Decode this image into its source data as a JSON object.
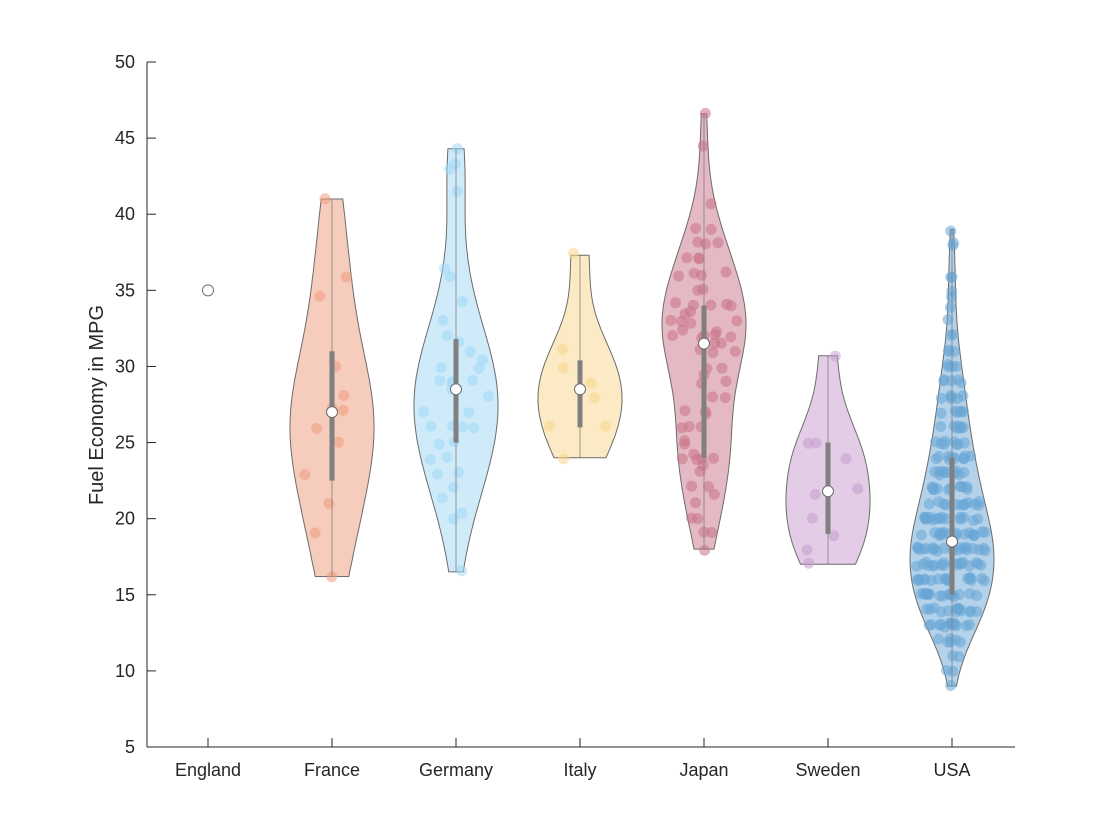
{
  "chart_data": {
    "type": "violin",
    "ylabel": "Fuel Economy in MPG",
    "ylim": [
      5,
      50
    ],
    "yticks": [
      5,
      10,
      15,
      20,
      25,
      30,
      35,
      40,
      45,
      50
    ],
    "grid": false,
    "categories": [
      "England",
      "France",
      "Germany",
      "Italy",
      "Japan",
      "Sweden",
      "USA"
    ],
    "series": [
      {
        "category": "England",
        "color": "#7f7f7f",
        "median": 35,
        "q1": 35,
        "q3": 35,
        "min": 35,
        "max": 35,
        "points": [
          35
        ]
      },
      {
        "category": "France",
        "color": "#ee9b7c",
        "median": 27,
        "q1": 22.5,
        "q3": 31,
        "min": 16.2,
        "max": 41,
        "points": [
          16.2,
          19,
          21,
          23,
          25,
          26,
          27,
          27.2,
          28,
          30,
          34.5,
          36,
          41
        ]
      },
      {
        "category": "Germany",
        "color": "#a0d8f6",
        "median": 28.5,
        "q1": 25,
        "q3": 31.8,
        "min": 16.5,
        "max": 44.3,
        "points": [
          16.5,
          20,
          20.3,
          21.5,
          22,
          23,
          23,
          24,
          24,
          25,
          25,
          26,
          26,
          26,
          26,
          27,
          27,
          28,
          28.5,
          29,
          29,
          29,
          29,
          30,
          30,
          30.5,
          31,
          31.5,
          32,
          33,
          34.3,
          36,
          36.4,
          41.5,
          43.1,
          43.4,
          44.3
        ]
      },
      {
        "category": "Italy",
        "color": "#f8d68a",
        "median": 28.5,
        "q1": 26,
        "q3": 30.4,
        "min": 24,
        "max": 37.3,
        "points": [
          24,
          26,
          26,
          28,
          29,
          30,
          31,
          37.3
        ]
      },
      {
        "category": "Japan",
        "color": "#c97387",
        "median": 31.5,
        "q1": 24,
        "q3": 34,
        "min": 18,
        "max": 46.6,
        "points": [
          18,
          19,
          19,
          20,
          20,
          21,
          21.5,
          22,
          22,
          23,
          23.5,
          24,
          24,
          24,
          24,
          24.2,
          25,
          25,
          26,
          26,
          26,
          27,
          27,
          27.2,
          28,
          28,
          29,
          29,
          29.5,
          30,
          30,
          31,
          31,
          31,
          31.5,
          31.6,
          32,
          32,
          32,
          32,
          32,
          32.2,
          32.4,
          32.7,
          33,
          33,
          33,
          33.5,
          33.7,
          34,
          34,
          34,
          34,
          34.1,
          35,
          35,
          36,
          36,
          36,
          36.1,
          37,
          37,
          37.2,
          38,
          38,
          38.1,
          39,
          39.1,
          40.8,
          44.6,
          46.6
        ]
      },
      {
        "category": "Sweden",
        "color": "#c79ccd",
        "median": 21.8,
        "q1": 19,
        "q3": 25,
        "min": 17,
        "max": 30.7,
        "points": [
          17,
          18,
          19,
          20,
          21.5,
          22,
          24,
          25,
          25,
          30.7
        ]
      },
      {
        "category": "USA",
        "color": "#6aa6d6",
        "median": 18.5,
        "q1": 15,
        "q3": 24,
        "min": 9,
        "max": 39,
        "points": [
          9,
          10,
          10,
          11,
          11,
          12,
          12,
          12,
          12,
          12,
          12,
          13,
          13,
          13,
          13,
          13,
          13,
          13,
          13,
          13,
          13,
          13,
          13,
          13,
          13,
          14,
          14,
          14,
          14,
          14,
          14,
          14,
          14,
          14,
          14,
          14,
          14,
          14,
          14,
          15,
          15,
          15,
          15,
          15,
          15,
          15,
          15,
          15,
          15,
          15,
          15,
          15,
          15,
          15,
          15,
          15,
          16,
          16,
          16,
          16,
          16,
          16,
          16,
          16,
          16,
          16,
          16,
          16,
          16,
          16,
          16,
          16,
          16,
          16,
          17,
          17,
          17,
          17,
          17,
          17,
          17,
          17,
          17,
          17,
          17,
          17,
          17,
          17,
          17,
          17,
          17,
          17,
          18,
          18,
          18,
          18,
          18,
          18,
          18,
          18,
          18,
          18,
          18,
          18,
          18,
          18,
          18,
          18,
          18,
          18,
          18,
          18,
          19,
          19,
          19,
          19,
          19,
          19,
          19,
          19,
          19,
          19,
          19,
          19,
          19,
          19,
          19,
          19,
          19,
          20,
          20,
          20,
          20,
          20,
          20,
          20,
          20,
          20,
          20,
          20,
          20,
          20,
          20,
          20,
          20,
          21,
          21,
          21,
          21,
          21,
          21,
          21,
          21,
          21,
          21,
          21,
          21,
          22,
          22,
          22,
          22,
          22,
          22,
          22,
          22,
          22,
          22,
          22,
          22,
          23,
          23,
          23,
          23,
          23,
          23,
          23,
          23,
          23,
          23,
          24,
          24,
          24,
          24,
          24,
          24,
          24,
          24,
          24,
          24,
          25,
          25,
          25,
          25,
          25,
          25,
          25,
          25,
          26,
          26,
          26,
          26,
          26,
          26,
          26,
          27,
          27,
          27,
          27,
          27,
          27,
          28,
          28,
          28,
          28,
          28,
          28,
          29,
          29,
          29,
          29,
          29,
          30,
          30,
          30,
          30,
          31,
          31,
          31,
          32,
          32,
          33,
          34,
          34.5,
          35,
          36,
          36,
          38,
          38,
          39
        ]
      }
    ]
  }
}
